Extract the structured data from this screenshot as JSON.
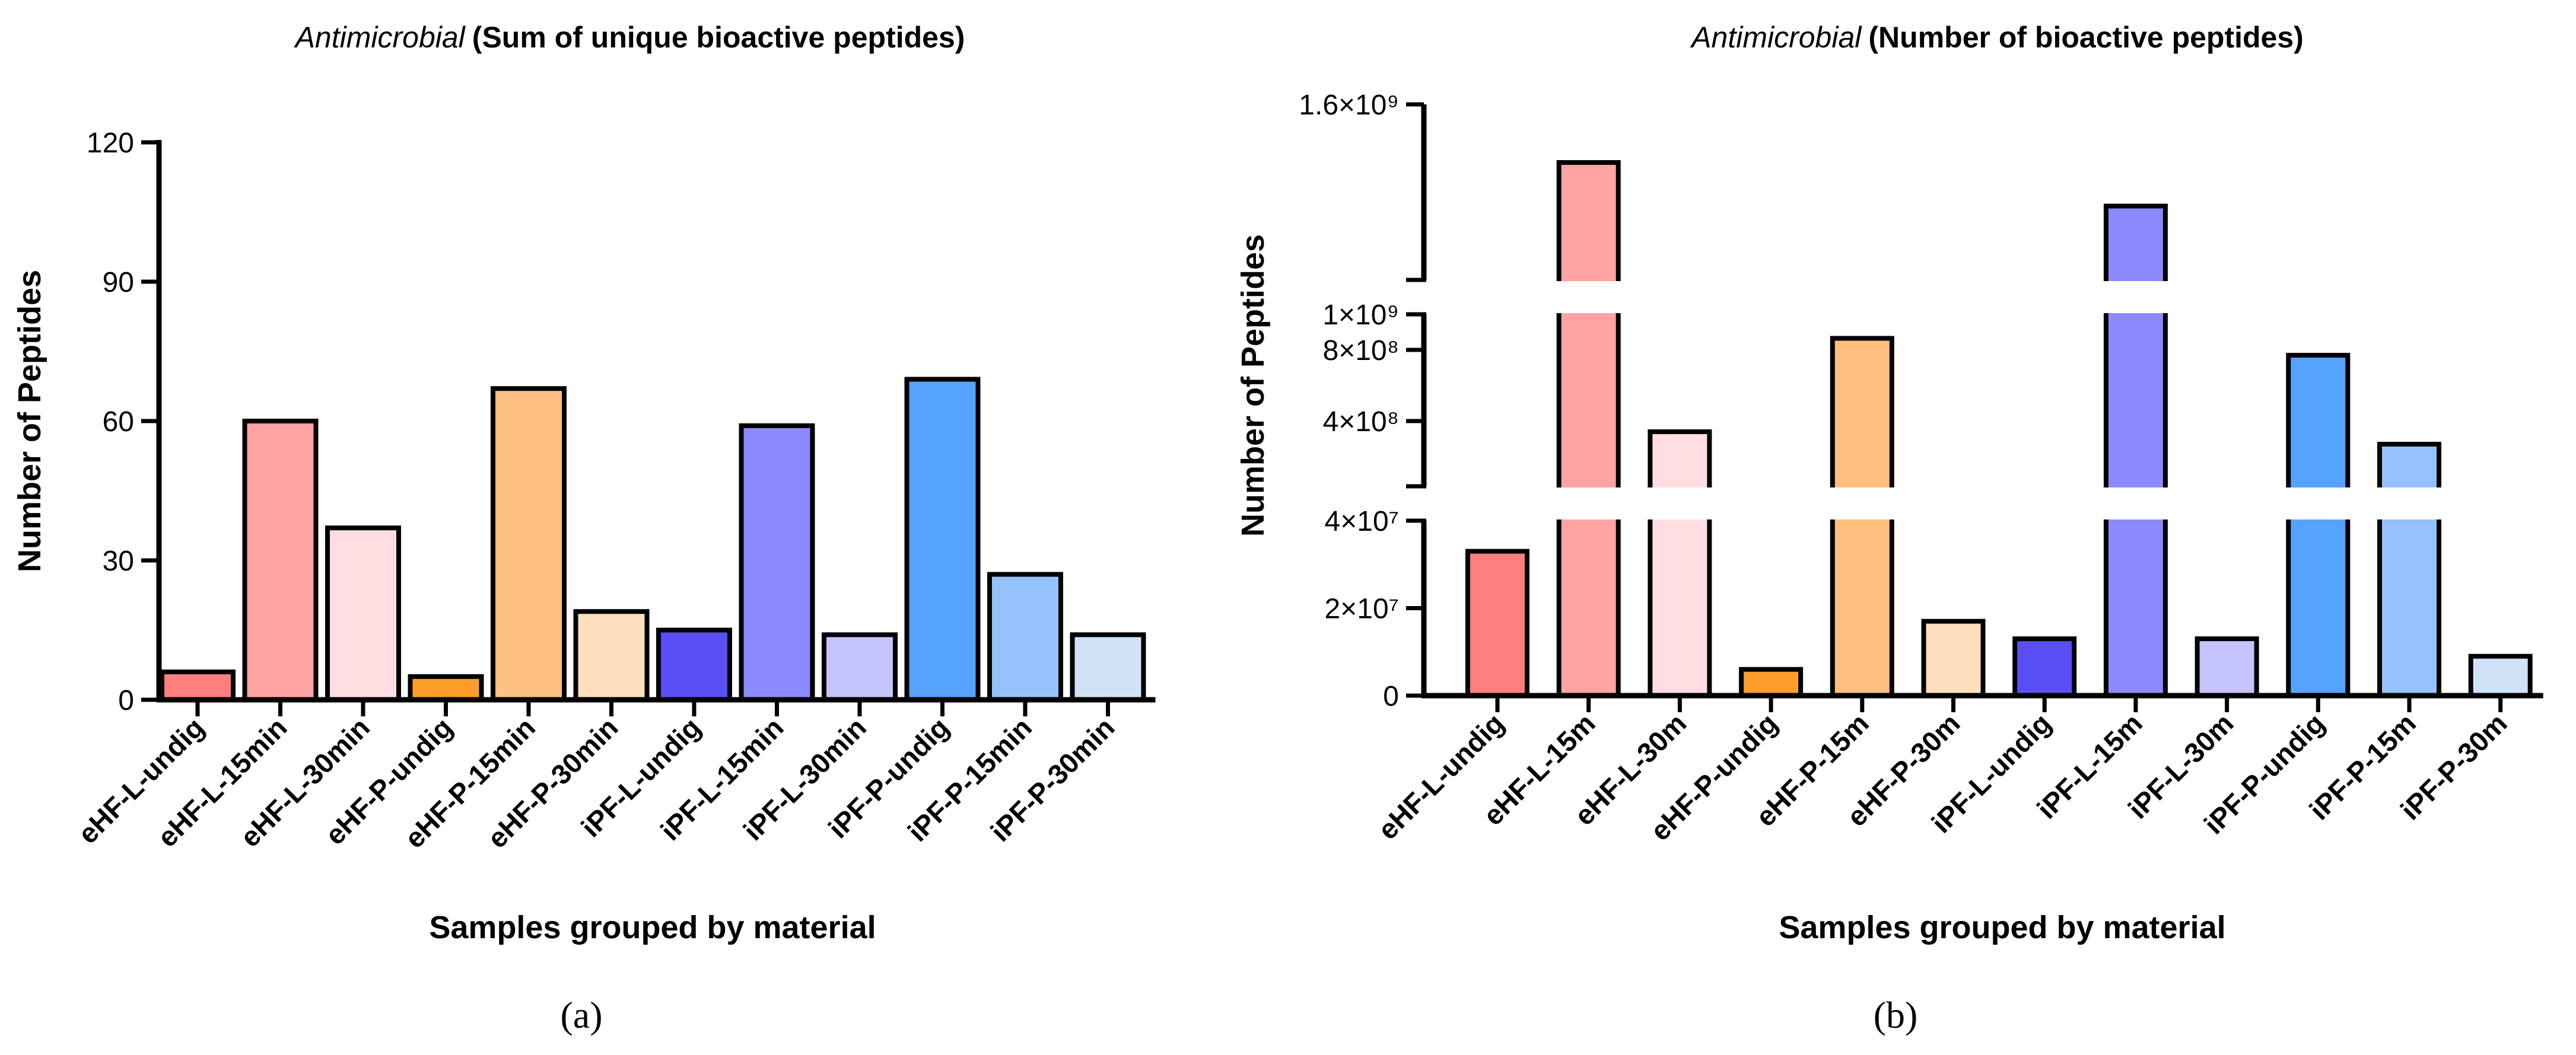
{
  "chart_data": [
    {
      "type": "bar",
      "title_italic": "Antimicrobial",
      "title_bold": "(Sum of unique bioactive peptides)",
      "xlabel": "Samples grouped by material",
      "ylabel": "Number of Peptides",
      "ylim": [
        0,
        120
      ],
      "yticks": [
        0,
        30,
        60,
        90,
        120
      ],
      "ytick_labels": [
        "0",
        "30",
        "60",
        "90",
        "120"
      ],
      "categories": [
        "eHF-L-undig",
        "eHF-L-15min",
        "eHF-L-30min",
        "eHF-P-undig",
        "eHF-P-15min",
        "eHF-P-30min",
        "iPF-L-undig",
        "iPF-L-15min",
        "iPF-L-30min",
        "iPF-P-undig",
        "iPF-P-15min",
        "iPF-P-30min"
      ],
      "values": [
        6,
        60,
        37,
        5,
        67,
        19,
        15,
        59,
        14,
        69,
        27,
        14
      ],
      "colors": [
        "#ff7f7f",
        "#ffa3a3",
        "#ffdde1",
        "#ff9e2c",
        "#ffc07f",
        "#ffdfbd",
        "#5a4ff5",
        "#8b8afc",
        "#c4c3fc",
        "#55a3ff",
        "#95c2fb",
        "#cfe2f8"
      ],
      "caption": "(a)"
    },
    {
      "type": "bar",
      "title_italic": "Antimicrobial",
      "title_bold": "(Number of bioactive peptides)",
      "xlabel": "Samples grouped by material",
      "ylabel": "Number of Peptides",
      "broken_axis": true,
      "segments": [
        {
          "range": [
            0,
            40000000
          ],
          "ticks": [
            0,
            20000000,
            40000000
          ],
          "tick_labels": [
            "0",
            "2×10⁷",
            "4×10⁷"
          ]
        },
        {
          "range": [
            40000000,
            1000000000
          ],
          "ticks": [
            400000000,
            800000000
          ],
          "tick_labels": [
            "4×10⁸",
            "8×10⁸"
          ]
        },
        {
          "range": [
            1000000000,
            1600000000
          ],
          "ticks": [
            1000000000,
            1600000000
          ],
          "tick_labels": [
            "1×10⁹",
            "1.6×10⁹"
          ]
        }
      ],
      "categories": [
        "eHF-L-undig",
        "eHF-L-15m",
        "eHF-L-30m",
        "eHF-P-undig",
        "eHF-P-15m",
        "eHF-P-30m",
        "iPF-L-undig",
        "iPF-L-15m",
        "iPF-L-30m",
        "iPF-P-undig",
        "iPF-P-15m",
        "iPF-P-30m"
      ],
      "values": [
        33000000,
        1400000000,
        340000000,
        6000000,
        865000000,
        17000000,
        13000000,
        1250000000,
        13000000,
        770000000,
        270000000,
        9000000
      ],
      "colors": [
        "#ff7f7f",
        "#ffa3a3",
        "#ffdde1",
        "#ff9e2c",
        "#ffc07f",
        "#ffdfbd",
        "#5a4ff5",
        "#8b8afc",
        "#c4c3fc",
        "#55a3ff",
        "#95c2fb",
        "#cfe2f8"
      ],
      "caption": "(b)"
    }
  ]
}
